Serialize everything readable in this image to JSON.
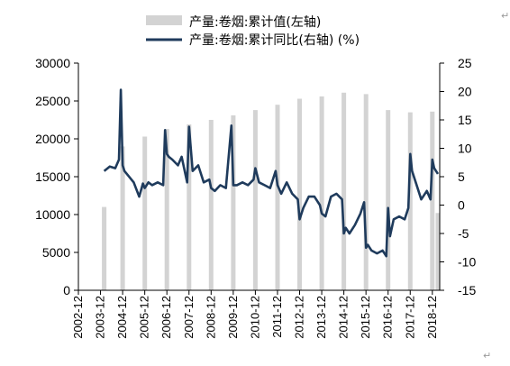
{
  "chart_data": {
    "type": "bar+line",
    "legend": {
      "bar_label": "产量:卷烟:累计值(左轴)",
      "line_label": "产量:卷烟:累计同比(右轴) (%)",
      "placement": "top-center"
    },
    "colors": {
      "bar": "#d3d3d3",
      "line": "#1f3b5c"
    },
    "left_axis": {
      "ylim": [
        0,
        30000
      ],
      "ticks": [
        "0",
        "5000",
        "10000",
        "15000",
        "20000",
        "25000",
        "30000"
      ]
    },
    "right_axis": {
      "ylim": [
        -15,
        25
      ],
      "ticks": [
        "-15",
        "-10",
        "-5",
        "0",
        "5",
        "10",
        "15",
        "20",
        "25"
      ]
    },
    "x_axis": {
      "range": [
        "2002-12",
        "2019-04"
      ],
      "ticks": [
        "2002-12",
        "2003-12",
        "2004-12",
        "2005-12",
        "2006-12",
        "2007-12",
        "2008-12",
        "2009-12",
        "2010-12",
        "2011-12",
        "2012-12",
        "2013-12",
        "2014-12",
        "2015-12",
        "2016-12",
        "2017-12",
        "2018-12"
      ]
    },
    "grid": false,
    "series": [
      {
        "name": "产量:卷烟:累计值(左轴)",
        "axis": "left",
        "kind": "bar",
        "x": [
          "2004-02",
          "2004-12",
          "2005-12",
          "2006-12",
          "2007-12",
          "2008-12",
          "2009-12",
          "2010-12",
          "2011-12",
          "2012-12",
          "2013-12",
          "2014-12",
          "2015-12",
          "2016-12",
          "2017-12",
          "2018-12",
          "2019-03"
        ],
        "values": [
          11000,
          19000,
          20300,
          21300,
          21900,
          22500,
          23100,
          23800,
          24500,
          25300,
          25600,
          26100,
          25900,
          23800,
          23500,
          23600,
          10200
        ]
      },
      {
        "name": "产量:卷烟:累计同比(右轴) (%)",
        "axis": "right",
        "kind": "line",
        "x": [
          "2004-02",
          "2004-05",
          "2004-08",
          "2004-10",
          "2004-11",
          "2004-12",
          "2005-01",
          "2005-03",
          "2005-06",
          "2005-09",
          "2005-11",
          "2005-12",
          "2006-02",
          "2006-04",
          "2006-07",
          "2006-10",
          "2006-11",
          "2006-12",
          "2007-01",
          "2007-03",
          "2007-06",
          "2007-08",
          "2007-11",
          "2007-12",
          "2008-02",
          "2008-05",
          "2008-08",
          "2008-11",
          "2008-12",
          "2009-02",
          "2009-05",
          "2009-08",
          "2009-11",
          "2009-12",
          "2010-02",
          "2010-05",
          "2010-08",
          "2010-11",
          "2010-12",
          "2011-02",
          "2011-05",
          "2011-08",
          "2011-11",
          "2011-12",
          "2012-02",
          "2012-05",
          "2012-08",
          "2012-11",
          "2012-12",
          "2013-02",
          "2013-05",
          "2013-08",
          "2013-11",
          "2013-12",
          "2014-02",
          "2014-05",
          "2014-08",
          "2014-11",
          "2014-12",
          "2015-01",
          "2015-03",
          "2015-06",
          "2015-09",
          "2015-11",
          "2015-12",
          "2016-01",
          "2016-03",
          "2016-06",
          "2016-09",
          "2016-11",
          "2016-12",
          "2017-01",
          "2017-03",
          "2017-06",
          "2017-09",
          "2017-11",
          "2017-12",
          "2018-01",
          "2018-03",
          "2018-06",
          "2018-09",
          "2018-11",
          "2018-12",
          "2019-01",
          "2019-03"
        ],
        "values": [
          6.0,
          6.8,
          6.5,
          8.0,
          20.3,
          7.0,
          6.0,
          5.2,
          4.0,
          1.5,
          3.8,
          3.0,
          4.0,
          3.5,
          4.0,
          3.5,
          13.2,
          9.0,
          8.5,
          8.0,
          7.0,
          8.5,
          4.0,
          13.8,
          6.0,
          7.0,
          4.0,
          4.5,
          3.0,
          2.5,
          3.5,
          3.0,
          14.0,
          3.5,
          3.5,
          4.0,
          3.5,
          4.5,
          6.5,
          4.0,
          3.5,
          3.0,
          6.0,
          3.5,
          2.0,
          4.0,
          2.0,
          1.0,
          -2.5,
          -0.5,
          1.5,
          1.5,
          0.0,
          -1.5,
          -2.0,
          1.5,
          2.0,
          1.0,
          -5.0,
          -4.0,
          -5.0,
          -3.5,
          -1.5,
          0.5,
          -7.5,
          -7.0,
          -8.0,
          -8.5,
          -8.0,
          -9.0,
          -0.5,
          -5.5,
          -2.5,
          -2.0,
          -2.5,
          -0.5,
          9.0,
          6.0,
          4.0,
          1.0,
          2.5,
          1.0,
          8.0,
          6.5,
          5.5
        ]
      }
    ]
  }
}
